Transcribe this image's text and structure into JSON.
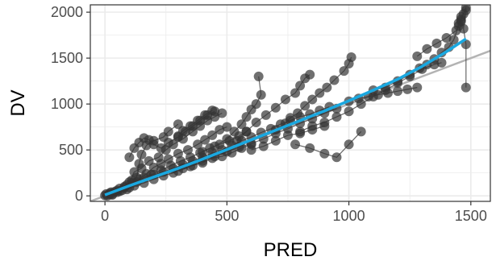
{
  "chart_data": {
    "type": "scatter",
    "xlabel": "PRED",
    "ylabel": "DV",
    "xlim": [
      -60,
      1580
    ],
    "ylim": [
      -60,
      2080
    ],
    "x_ticks": [
      0,
      500,
      1000,
      1500
    ],
    "x_tick_labels": [
      "0",
      "500",
      "1000",
      "1500"
    ],
    "y_ticks": [
      0,
      500,
      1000,
      1500,
      2000
    ],
    "y_tick_labels": [
      "0",
      "500",
      "1000",
      "1500",
      "2000"
    ],
    "grid": true,
    "legend": "none",
    "colors": {
      "points": "#333333",
      "connecting_lines": "#4d4d4d",
      "smooth_line": "#1aa8e0",
      "identity_line": "#b3b3b3",
      "grid": "#ebebeb",
      "panel_border": "#333333"
    },
    "identity_line": {
      "x": [
        -60,
        1580
      ],
      "y": [
        -60,
        1580
      ]
    },
    "smooth_line": {
      "x": [
        0,
        100,
        200,
        300,
        400,
        500,
        600,
        700,
        800,
        900,
        1000,
        1100,
        1200,
        1300,
        1400,
        1480
      ],
      "y": [
        10,
        110,
        205,
        300,
        400,
        505,
        610,
        715,
        820,
        925,
        1035,
        1150,
        1270,
        1410,
        1570,
        1710
      ]
    },
    "series": [
      {
        "values": [
          [
            0,
            5
          ],
          [
            20,
            30
          ],
          [
            40,
            45
          ],
          [
            60,
            80
          ],
          [
            90,
            120
          ],
          [
            110,
            170
          ],
          [
            130,
            200
          ],
          [
            140,
            350
          ],
          [
            150,
            450
          ],
          [
            170,
            550
          ],
          [
            200,
            600
          ],
          [
            240,
            640
          ],
          [
            260,
            700
          ],
          [
            300,
            780
          ]
        ]
      },
      {
        "values": [
          [
            5,
            20
          ],
          [
            25,
            40
          ],
          [
            50,
            60
          ],
          [
            80,
            90
          ],
          [
            100,
            150
          ],
          [
            120,
            260
          ],
          [
            150,
            300
          ],
          [
            180,
            380
          ],
          [
            220,
            420
          ],
          [
            250,
            500
          ],
          [
            280,
            560
          ],
          [
            320,
            620
          ],
          [
            360,
            700
          ],
          [
            390,
            760
          ],
          [
            420,
            820
          ],
          [
            450,
            860
          ],
          [
            480,
            900
          ]
        ]
      },
      {
        "values": [
          [
            10,
            0
          ],
          [
            30,
            20
          ],
          [
            60,
            50
          ],
          [
            90,
            70
          ],
          [
            120,
            110
          ],
          [
            160,
            140
          ],
          [
            200,
            180
          ],
          [
            240,
            220
          ],
          [
            280,
            250
          ],
          [
            320,
            300
          ],
          [
            360,
            330
          ],
          [
            400,
            360
          ],
          [
            440,
            410
          ],
          [
            480,
            430
          ],
          [
            520,
            470
          ],
          [
            560,
            520
          ],
          [
            600,
            560
          ]
        ]
      },
      {
        "values": [
          [
            20,
            15
          ],
          [
            50,
            40
          ],
          [
            80,
            100
          ],
          [
            110,
            140
          ],
          [
            140,
            180
          ],
          [
            170,
            240
          ],
          [
            200,
            310
          ],
          [
            230,
            350
          ],
          [
            260,
            400
          ],
          [
            300,
            460
          ],
          [
            340,
            500
          ],
          [
            380,
            560
          ],
          [
            410,
            610
          ],
          [
            440,
            660
          ],
          [
            470,
            720
          ],
          [
            500,
            750
          ]
        ]
      },
      {
        "values": [
          [
            30,
            10
          ],
          [
            70,
            60
          ],
          [
            100,
            90
          ],
          [
            130,
            150
          ],
          [
            160,
            200
          ],
          [
            190,
            230
          ],
          [
            230,
            280
          ],
          [
            270,
            330
          ],
          [
            310,
            380
          ],
          [
            350,
            420
          ],
          [
            390,
            470
          ],
          [
            430,
            520
          ],
          [
            470,
            560
          ],
          [
            510,
            600
          ],
          [
            550,
            650
          ],
          [
            580,
            700
          ]
        ]
      },
      {
        "values": [
          [
            100,
            420
          ],
          [
            120,
            520
          ],
          [
            140,
            580
          ],
          [
            160,
            630
          ],
          [
            180,
            610
          ],
          [
            200,
            560
          ],
          [
            230,
            520
          ],
          [
            260,
            580
          ],
          [
            300,
            640
          ],
          [
            330,
            700
          ],
          [
            360,
            760
          ],
          [
            390,
            820
          ],
          [
            420,
            880
          ],
          [
            450,
            920
          ]
        ]
      },
      {
        "values": [
          [
            200,
            230
          ],
          [
            240,
            260
          ],
          [
            280,
            300
          ],
          [
            320,
            340
          ],
          [
            360,
            380
          ],
          [
            400,
            420
          ],
          [
            440,
            470
          ],
          [
            480,
            500
          ],
          [
            520,
            550
          ],
          [
            560,
            600
          ],
          [
            600,
            640
          ],
          [
            640,
            690
          ],
          [
            680,
            730
          ],
          [
            720,
            780
          ],
          [
            760,
            820
          ],
          [
            800,
            860
          ],
          [
            840,
            890
          ],
          [
            880,
            930
          ],
          [
            920,
            970
          ]
        ]
      },
      {
        "values": [
          [
            300,
            270
          ],
          [
            350,
            320
          ],
          [
            400,
            380
          ],
          [
            450,
            430
          ],
          [
            500,
            480
          ],
          [
            550,
            530
          ],
          [
            600,
            570
          ],
          [
            650,
            620
          ],
          [
            700,
            680
          ],
          [
            750,
            730
          ],
          [
            800,
            790
          ],
          [
            850,
            840
          ],
          [
            900,
            900
          ],
          [
            950,
            950
          ]
        ]
      },
      {
        "values": [
          [
            400,
            480
          ],
          [
            450,
            540
          ],
          [
            500,
            620
          ],
          [
            530,
            700
          ],
          [
            560,
            780
          ],
          [
            580,
            860
          ],
          [
            600,
            940
          ],
          [
            620,
            1000
          ],
          [
            640,
            1100
          ],
          [
            630,
            1300
          ]
        ]
      },
      {
        "values": [
          [
            540,
            600
          ],
          [
            580,
            700
          ],
          [
            620,
            800
          ],
          [
            660,
            880
          ],
          [
            700,
            960
          ],
          [
            740,
            1050
          ],
          [
            780,
            1120
          ],
          [
            800,
            1200
          ],
          [
            820,
            1280
          ],
          [
            840,
            1320
          ]
        ]
      },
      {
        "values": [
          [
            700,
            720
          ],
          [
            740,
            790
          ],
          [
            760,
            850
          ],
          [
            790,
            900
          ],
          [
            820,
            980
          ],
          [
            850,
            1050
          ],
          [
            880,
            1120
          ],
          [
            910,
            1180
          ],
          [
            940,
            1260
          ],
          [
            980,
            1360
          ],
          [
            1000,
            1440
          ],
          [
            1010,
            1510
          ]
        ]
      },
      {
        "values": [
          [
            800,
            700
          ],
          [
            850,
            760
          ],
          [
            900,
            800
          ],
          [
            950,
            860
          ],
          [
            1000,
            920
          ],
          [
            1050,
            1000
          ],
          [
            1100,
            1080
          ],
          [
            1150,
            1150
          ],
          [
            1200,
            1230
          ],
          [
            1250,
            1300
          ],
          [
            1300,
            1380
          ],
          [
            1350,
            1430
          ],
          [
            1380,
            1450
          ]
        ]
      },
      {
        "values": [
          [
            780,
            560
          ],
          [
            840,
            520
          ],
          [
            900,
            460
          ],
          [
            950,
            420
          ],
          [
            1000,
            560
          ],
          [
            1050,
            700
          ]
        ]
      },
      {
        "values": [
          [
            1100,
            1150
          ],
          [
            1150,
            1180
          ],
          [
            1200,
            1250
          ],
          [
            1250,
            1320
          ],
          [
            1290,
            1390
          ],
          [
            1320,
            1430
          ],
          [
            1350,
            1490
          ],
          [
            1380,
            1560
          ],
          [
            1410,
            1620
          ],
          [
            1430,
            1700
          ],
          [
            1450,
            1850
          ],
          [
            1460,
            1900
          ]
        ]
      },
      {
        "values": [
          [
            1280,
            1520
          ],
          [
            1320,
            1600
          ],
          [
            1360,
            1660
          ],
          [
            1400,
            1720
          ],
          [
            1440,
            1800
          ],
          [
            1450,
            1880
          ],
          [
            1460,
            1920
          ],
          [
            1470,
            1980
          ],
          [
            1480,
            2050
          ]
        ]
      },
      {
        "values": [
          [
            1460,
            1950
          ],
          [
            1480,
            2020
          ],
          [
            1470,
            1820
          ],
          [
            1480,
            1650
          ],
          [
            1480,
            1180
          ]
        ]
      },
      {
        "values": [
          [
            1000,
            1030
          ],
          [
            1040,
            1060
          ],
          [
            1080,
            1080
          ],
          [
            1120,
            1100
          ],
          [
            1160,
            1120
          ],
          [
            1200,
            1140
          ],
          [
            1240,
            1160
          ],
          [
            1280,
            1180
          ]
        ]
      },
      {
        "values": [
          [
            600,
            500
          ],
          [
            650,
            540
          ],
          [
            700,
            600
          ],
          [
            750,
            660
          ],
          [
            800,
            680
          ],
          [
            850,
            720
          ],
          [
            900,
            760
          ]
        ]
      },
      {
        "values": [
          [
            300,
            650
          ],
          [
            320,
            710
          ],
          [
            350,
            760
          ],
          [
            380,
            820
          ],
          [
            410,
            880
          ],
          [
            440,
            930
          ]
        ]
      }
    ]
  }
}
